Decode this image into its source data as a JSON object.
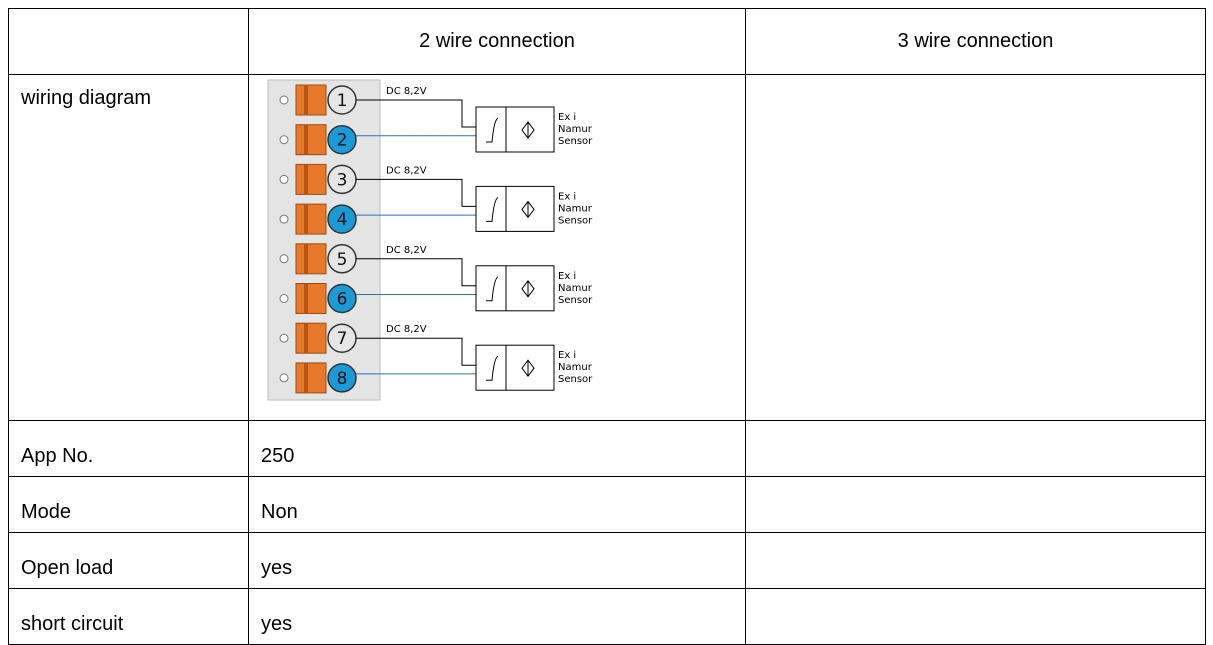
{
  "header": {
    "columns": [
      "2 wire connection",
      "3 wire connection"
    ]
  },
  "rows": [
    {
      "label": "wiring diagram"
    },
    {
      "label": "App No.",
      "two_wire": "250"
    },
    {
      "label": "Mode",
      "two_wire": "Non"
    },
    {
      "label": "Open load",
      "two_wire": "yes"
    },
    {
      "label": "short circuit",
      "two_wire": "yes"
    }
  ],
  "diagram": {
    "terminals": [
      "1",
      "2",
      "3",
      "4",
      "5",
      "6",
      "7",
      "8"
    ],
    "sensors": [
      {
        "supply": "DC 8,2V",
        "lines": [
          "Ex i",
          "Namur",
          "Sensor"
        ]
      },
      {
        "supply": "DC 8,2V",
        "lines": [
          "Ex i",
          "Namur",
          "Sensor"
        ]
      },
      {
        "supply": "DC 8,2V",
        "lines": [
          "Ex i",
          "Namur",
          "Sensor"
        ]
      },
      {
        "supply": "DC 8,2V",
        "lines": [
          "Ex i",
          "Namur",
          "Sensor"
        ]
      }
    ]
  }
}
